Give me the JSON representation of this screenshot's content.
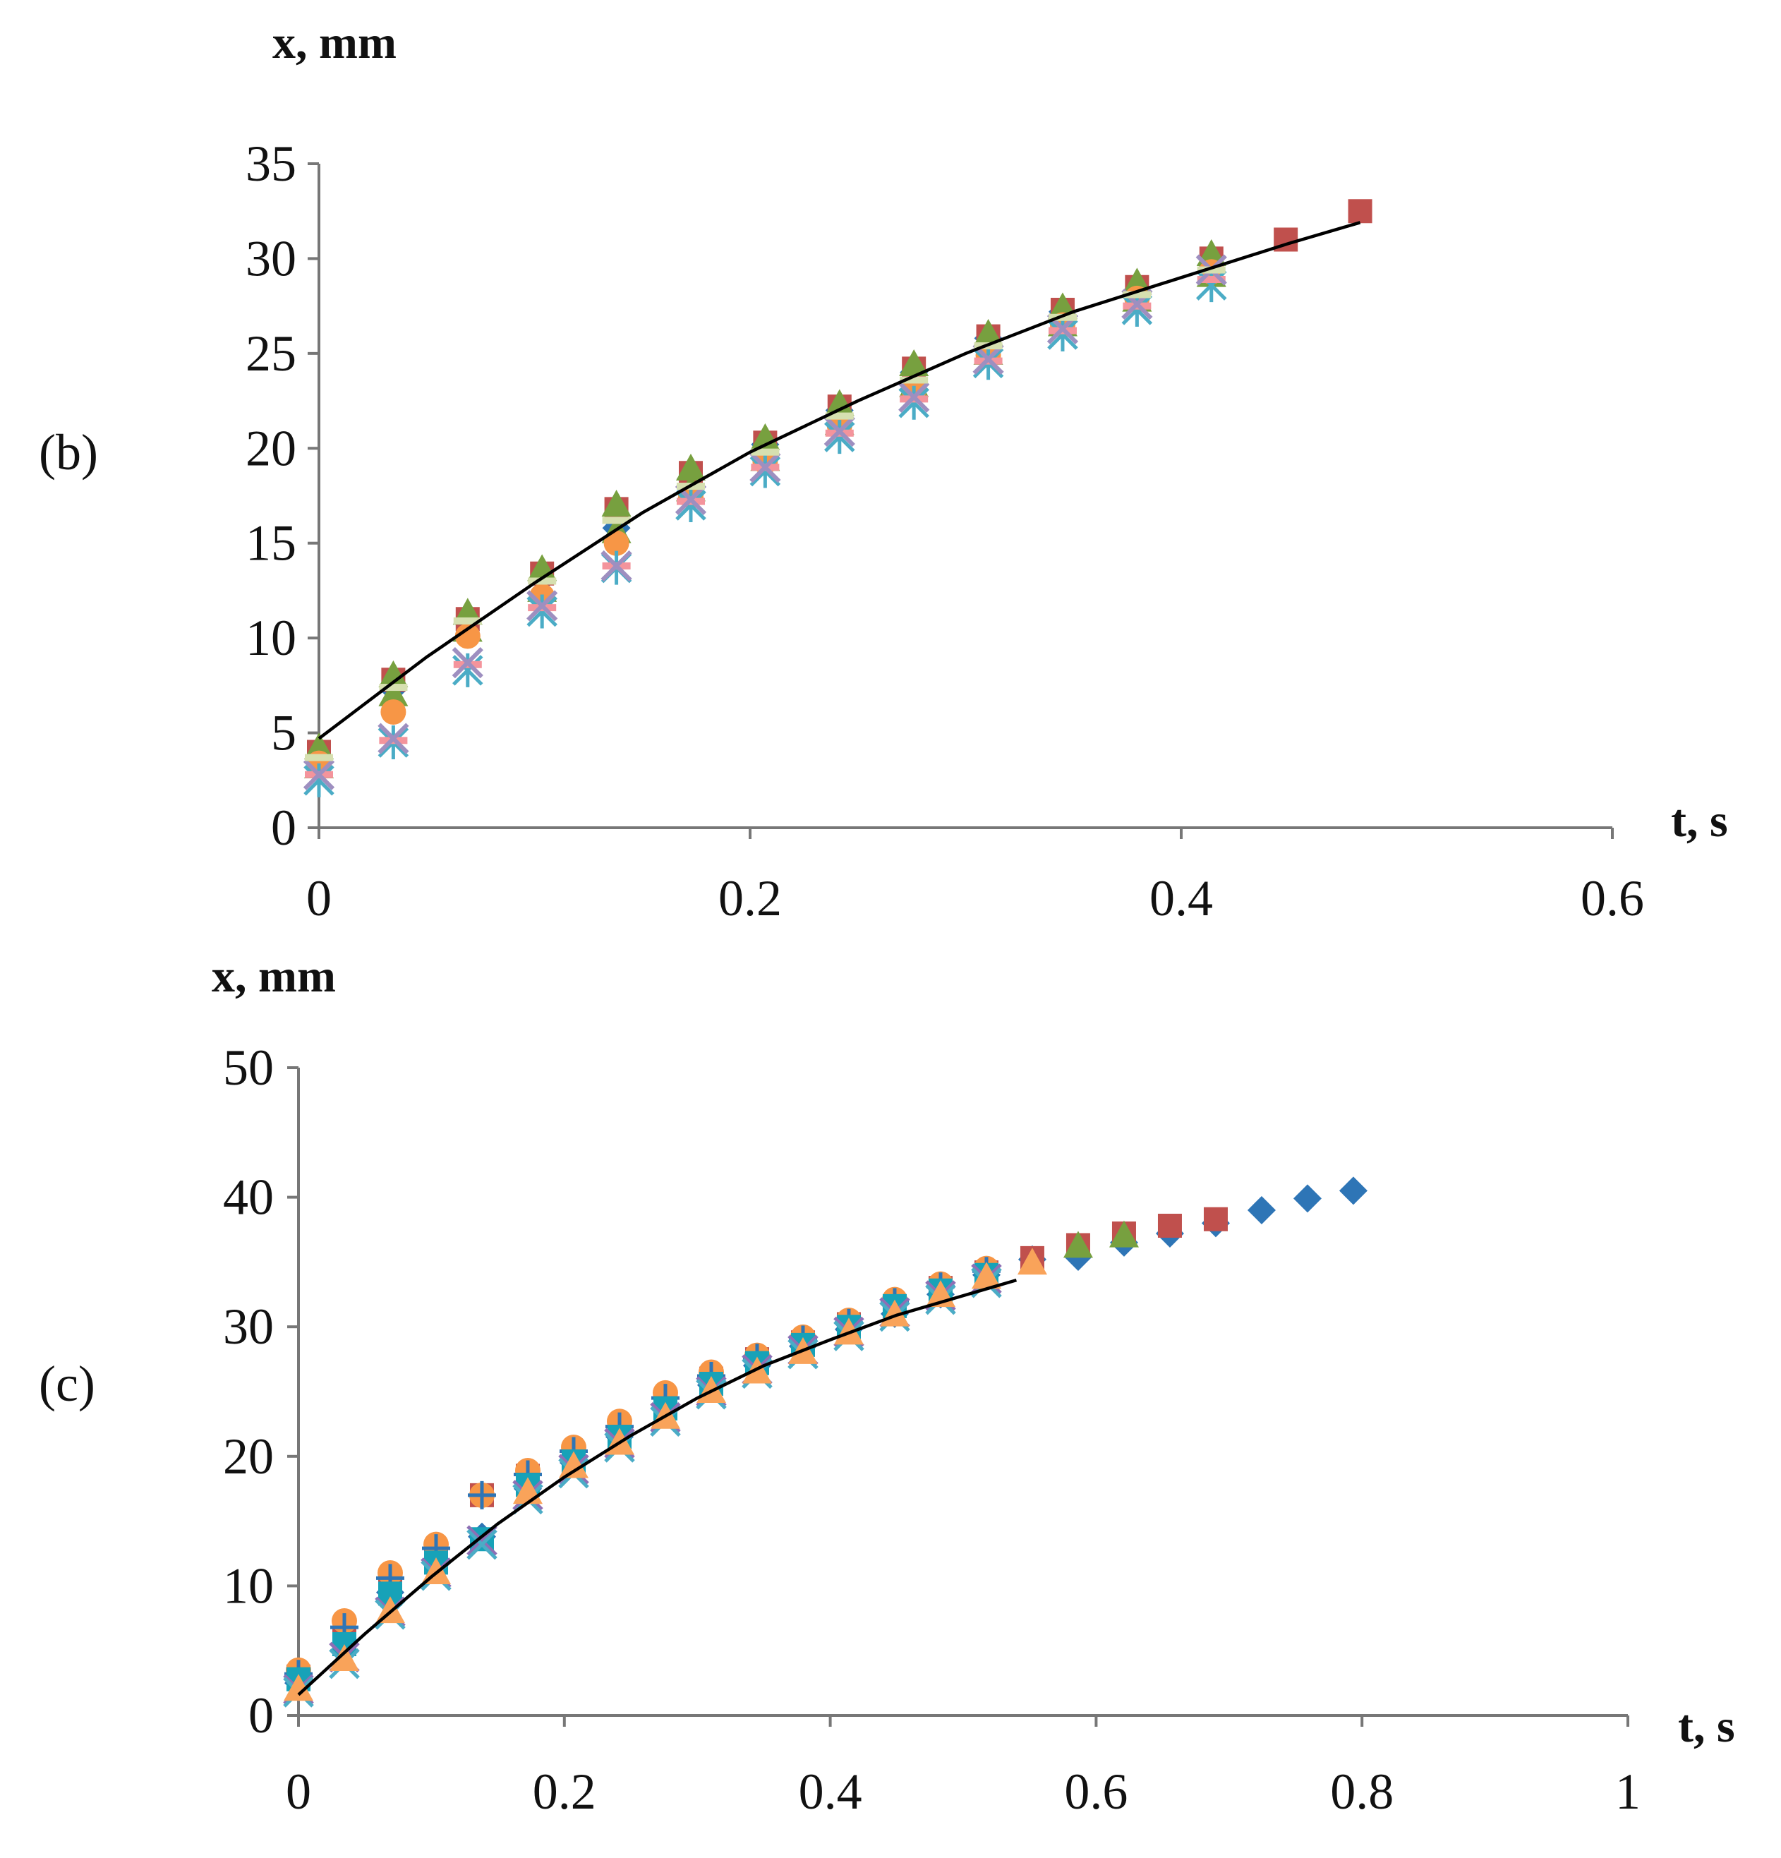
{
  "chart_data": [
    {
      "id": "b",
      "type": "scatter",
      "panel_label": "(b)",
      "xlabel": "t, s",
      "ylabel": "x, mm",
      "xlim": [
        0,
        0.6
      ],
      "ylim": [
        0,
        35
      ],
      "xticks": [
        0,
        0.2,
        0.4,
        0.6
      ],
      "xtick_labels": [
        "0",
        "0.2",
        "0.4",
        "0.6"
      ],
      "yticks": [
        0,
        5,
        10,
        15,
        20,
        25,
        30,
        35
      ],
      "ytick_labels": [
        "0",
        "5",
        "10",
        "15",
        "20",
        "25",
        "30",
        "35"
      ],
      "grid": false,
      "legend": "none",
      "series": [
        {
          "name": "series 1",
          "marker": "diamond",
          "color": "#2e75b6",
          "x": [
            0,
            0.0345,
            0.069,
            0.1035,
            0.138,
            0.1725,
            0.207,
            0.2415,
            0.276,
            0.3105,
            0.345,
            0.3795,
            0.414
          ],
          "y": [
            3.6,
            7.3,
            10.8,
            13.1,
            15.8,
            18.4,
            20.2,
            22.0,
            24.0,
            25.8,
            27.2,
            28.3,
            29.7
          ]
        },
        {
          "name": "series 2",
          "marker": "square",
          "color": "#c0504d",
          "x": [
            0,
            0.0345,
            0.069,
            0.1035,
            0.138,
            0.1725,
            0.207,
            0.2415,
            0.276,
            0.3105,
            0.345,
            0.3795,
            0.414,
            0.4485,
            0.483
          ],
          "y": [
            4.0,
            7.8,
            11.0,
            13.4,
            16.8,
            18.7,
            20.3,
            22.2,
            24.2,
            25.9,
            27.3,
            28.5,
            30.0,
            31.0,
            32.5
          ]
        },
        {
          "name": "series 3",
          "marker": "triangle",
          "color": "#77a03f",
          "x": [
            0,
            0.0345,
            0.069,
            0.1035,
            0.138,
            0.1725,
            0.207,
            0.2415,
            0.276,
            0.3105,
            0.345,
            0.3795,
            0.414
          ],
          "y": [
            4.2,
            8.0,
            11.3,
            13.6,
            17.0,
            18.9,
            20.5,
            22.3,
            24.4,
            26.0,
            27.4,
            28.7,
            30.2
          ]
        },
        {
          "name": "series 4",
          "marker": "triangle",
          "color": "#77a03f",
          "x": [
            0,
            0.0345,
            0.069,
            0.1035,
            0.138,
            0.1725,
            0.207,
            0.2415,
            0.276,
            0.3105,
            0.345,
            0.3795,
            0.414
          ],
          "y": [
            3.2,
            7.0,
            10.4,
            12.5,
            15.6,
            17.8,
            19.4,
            21.3,
            23.3,
            25.0,
            26.5,
            27.8,
            29.1
          ]
        },
        {
          "name": "series 5",
          "marker": "circle",
          "color": "#f79646",
          "x": [
            0,
            0.0345,
            0.069,
            0.1035,
            0.138,
            0.1725,
            0.207,
            0.2415,
            0.276,
            0.3105,
            0.345,
            0.3795,
            0.414
          ],
          "y": [
            3.4,
            6.1,
            10.1,
            12.2,
            15.0,
            17.5,
            19.3,
            21.2,
            23.1,
            24.9,
            26.5,
            27.9,
            29.3
          ]
        },
        {
          "name": "series 6",
          "marker": "star",
          "color": "#4bacc6",
          "x": [
            0,
            0.0345,
            0.069,
            0.1035,
            0.138,
            0.1725,
            0.207,
            0.2415,
            0.276,
            0.3105,
            0.345,
            0.3795,
            0.414
          ],
          "y": [
            2.5,
            4.5,
            8.3,
            11.4,
            13.7,
            17.0,
            18.8,
            20.6,
            22.4,
            24.5,
            26.0,
            27.3,
            28.6
          ]
        },
        {
          "name": "series 7",
          "marker": "dash",
          "color": "#f4949c",
          "x": [
            0,
            0.0345,
            0.069,
            0.1035,
            0.138,
            0.1725,
            0.207,
            0.2415,
            0.276,
            0.3105,
            0.345,
            0.3795,
            0.414
          ],
          "y": [
            2.8,
            4.6,
            8.6,
            11.6,
            13.8,
            17.2,
            19.0,
            20.8,
            22.6,
            24.6,
            26.2,
            27.5,
            28.9
          ]
        },
        {
          "name": "series 8",
          "marker": "x-diamond",
          "color": "#9e8fc0",
          "x": [
            0,
            0.0345,
            0.069,
            0.1035,
            0.138,
            0.1725,
            0.207,
            0.2415,
            0.276,
            0.3105,
            0.345,
            0.3795,
            0.414
          ],
          "y": [
            2.8,
            4.7,
            8.7,
            11.7,
            13.8,
            17.3,
            19.0,
            20.9,
            22.7,
            24.7,
            26.3,
            27.6,
            29.4
          ]
        },
        {
          "name": "series 9",
          "marker": "dash",
          "color": "#d6e0b0",
          "x": [
            0,
            0.0345,
            0.069,
            0.1035,
            0.138,
            0.1725,
            0.207,
            0.2415,
            0.276,
            0.3105,
            0.345,
            0.3795,
            0.414
          ],
          "y": [
            3.7,
            7.4,
            10.9,
            13.0,
            16.2,
            18.0,
            19.8,
            21.7,
            23.6,
            25.4,
            26.9,
            28.1,
            29.4
          ]
        }
      ],
      "fit": {
        "name": "fit",
        "color": "#000000",
        "x": [
          0,
          0.05,
          0.1,
          0.15,
          0.2,
          0.25,
          0.3,
          0.35,
          0.4,
          0.45,
          0.483
        ],
        "y": [
          4.7,
          9.0,
          12.9,
          16.6,
          19.8,
          22.5,
          25.0,
          27.2,
          29.0,
          30.8,
          31.9
        ]
      }
    },
    {
      "id": "c",
      "type": "scatter",
      "panel_label": "(c)",
      "xlabel": "t, s",
      "ylabel": "x, mm",
      "xlim": [
        0,
        1
      ],
      "ylim": [
        0,
        50
      ],
      "xticks": [
        0,
        0.2,
        0.4,
        0.6,
        0.8,
        1
      ],
      "xtick_labels": [
        "0",
        "0.2",
        "0.4",
        "0.6",
        "0.8",
        "1"
      ],
      "yticks": [
        0,
        10,
        20,
        30,
        40,
        50
      ],
      "ytick_labels": [
        "0",
        "10",
        "20",
        "30",
        "40",
        "50"
      ],
      "grid": false,
      "legend": "none",
      "series": [
        {
          "name": "series 1",
          "marker": "diamond",
          "color": "#2e75b6",
          "x": [
            0,
            0.0345,
            0.069,
            0.1035,
            0.138,
            0.1725,
            0.207,
            0.2415,
            0.276,
            0.3105,
            0.345,
            0.3795,
            0.414,
            0.4485,
            0.483,
            0.5175,
            0.552,
            0.5865,
            0.621,
            0.6555,
            0.69,
            0.7245,
            0.759,
            0.7935
          ],
          "y": [
            2.5,
            5.0,
            9.5,
            12.0,
            13.8,
            17.5,
            19.5,
            21.5,
            23.7,
            25.5,
            27.0,
            28.5,
            29.8,
            31.0,
            32.5,
            34.0,
            35.2,
            35.4,
            36.5,
            37.2,
            38.0,
            39.0,
            39.9,
            40.5
          ]
        },
        {
          "name": "series 2",
          "marker": "square",
          "color": "#c0504d",
          "x": [
            0,
            0.0345,
            0.069,
            0.1035,
            0.138,
            0.1725,
            0.207,
            0.2415,
            0.276,
            0.3105,
            0.345,
            0.3795,
            0.414,
            0.4485,
            0.483,
            0.5175,
            0.552,
            0.5865,
            0.621,
            0.6555,
            0.69
          ],
          "y": [
            3.0,
            6.0,
            10.3,
            12.5,
            17.0,
            18.5,
            20.0,
            21.8,
            24.2,
            26.0,
            27.5,
            28.8,
            30.2,
            31.6,
            33.0,
            34.2,
            35.3,
            36.3,
            37.2,
            37.8,
            38.3
          ]
        },
        {
          "name": "series 3",
          "marker": "triangle",
          "color": "#77a03f",
          "x": [
            0.5865,
            0.621
          ],
          "y": [
            36.2,
            37.0
          ]
        },
        {
          "name": "series 4",
          "marker": "circle",
          "color": "#f79646",
          "x": [
            0,
            0.0345,
            0.069,
            0.1035,
            0.138,
            0.1725,
            0.207,
            0.2415,
            0.276,
            0.3105,
            0.345,
            0.3795,
            0.414,
            0.4485,
            0.483,
            0.5175
          ],
          "y": [
            3.5,
            7.3,
            11.0,
            13.2,
            17.0,
            18.9,
            20.7,
            22.7,
            24.9,
            26.5,
            27.8,
            29.2,
            30.5,
            32.1,
            33.3,
            34.5
          ]
        },
        {
          "name": "series 5",
          "marker": "plus",
          "color": "#2e75b6",
          "x": [
            0,
            0.0345,
            0.069,
            0.1035,
            0.138,
            0.1725,
            0.207,
            0.2415,
            0.276,
            0.3105,
            0.345,
            0.3795,
            0.414,
            0.4485,
            0.483,
            0.5175
          ],
          "y": [
            3.2,
            6.8,
            10.6,
            12.9,
            17.0,
            18.6,
            20.4,
            22.3,
            24.5,
            26.2,
            27.6,
            29.0,
            30.3,
            31.9,
            33.1,
            34.3
          ]
        },
        {
          "name": "series 6",
          "marker": "square",
          "color": "#17a2b8",
          "x": [
            0,
            0.0345,
            0.069,
            0.1035,
            0.138,
            0.1725,
            0.207,
            0.2415,
            0.276,
            0.3105,
            0.345,
            0.3795,
            0.414,
            0.4485,
            0.483,
            0.5175
          ],
          "y": [
            2.8,
            5.5,
            9.4,
            11.8,
            13.6,
            17.8,
            19.6,
            21.5,
            23.7,
            25.6,
            27.2,
            28.6,
            30.0,
            31.6,
            32.8,
            34.0
          ]
        },
        {
          "name": "series 7",
          "marker": "x",
          "color": "#8e6fb5",
          "x": [
            0,
            0.0345,
            0.069,
            0.1035,
            0.138,
            0.1725,
            0.207,
            0.2415,
            0.276,
            0.3105,
            0.345,
            0.3795,
            0.414,
            0.4485,
            0.483,
            0.5175
          ],
          "y": [
            2.0,
            4.5,
            8.0,
            11.0,
            13.5,
            17.0,
            19.0,
            21.0,
            23.0,
            25.0,
            26.7,
            28.2,
            29.6,
            31.1,
            32.4,
            33.7
          ]
        },
        {
          "name": "series 8",
          "marker": "x",
          "color": "#4bacc6",
          "x": [
            0,
            0.0345,
            0.069,
            0.1035,
            0.138,
            0.1725,
            0.207,
            0.2415,
            0.276,
            0.3105,
            0.345,
            0.3795,
            0.414,
            0.4485,
            0.483,
            0.5175
          ],
          "y": [
            1.8,
            4.0,
            7.8,
            10.8,
            13.2,
            16.7,
            18.7,
            20.7,
            22.7,
            24.8,
            26.4,
            27.9,
            29.3,
            30.8,
            32.1,
            33.4
          ]
        },
        {
          "name": "series 9",
          "marker": "triangle",
          "color": "#f9a35a",
          "x": [
            0,
            0.0345,
            0.069,
            0.1035,
            0.1725,
            0.207,
            0.2415,
            0.276,
            0.3105,
            0.345,
            0.3795,
            0.414,
            0.4485,
            0.483,
            0.5175,
            0.552
          ],
          "y": [
            2.0,
            4.3,
            8.0,
            11.0,
            17.2,
            19.2,
            21.0,
            23.0,
            25.0,
            26.5,
            28.0,
            29.5,
            30.9,
            32.4,
            33.8,
            34.9
          ]
        }
      ],
      "fit": {
        "name": "fit",
        "color": "#000000",
        "x": [
          0,
          0.05,
          0.1,
          0.15,
          0.2,
          0.25,
          0.3,
          0.35,
          0.4,
          0.45,
          0.5,
          0.54
        ],
        "y": [
          1.6,
          6.3,
          10.7,
          14.8,
          18.4,
          21.6,
          24.5,
          27.0,
          29.0,
          30.9,
          32.4,
          33.6
        ]
      }
    }
  ]
}
